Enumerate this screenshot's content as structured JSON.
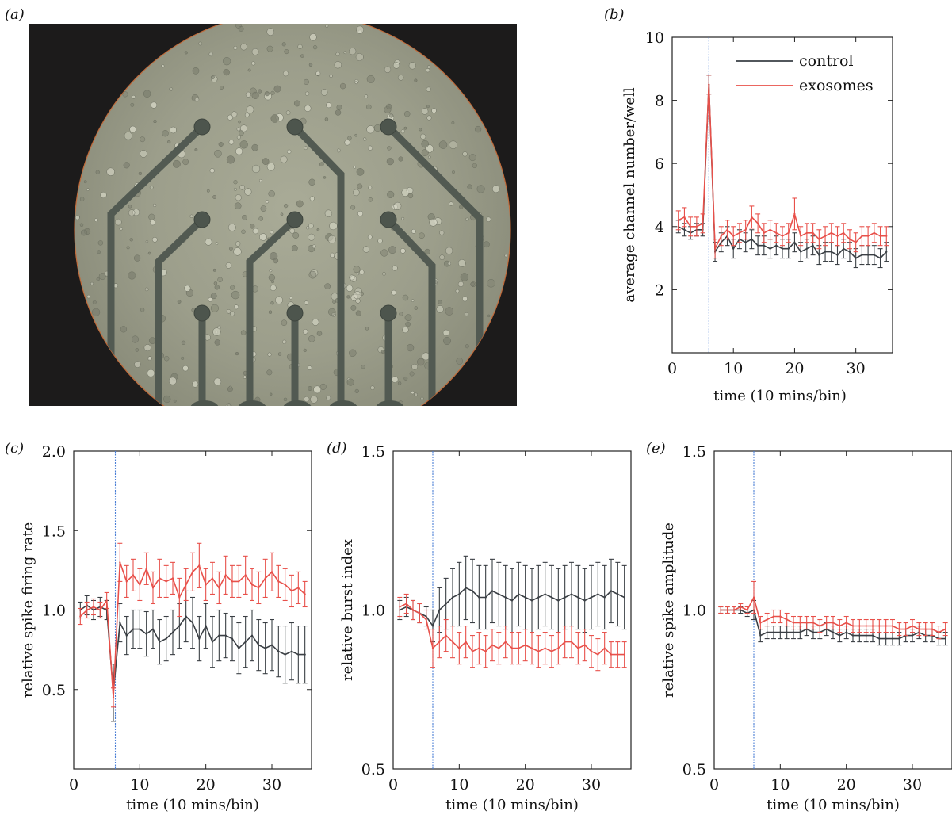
{
  "figure": {
    "panels": [
      {
        "id": "a",
        "label": "(a)"
      },
      {
        "id": "b",
        "label": "(b)"
      },
      {
        "id": "c",
        "label": "(c)"
      },
      {
        "id": "d",
        "label": "(d)"
      },
      {
        "id": "e",
        "label": "(e)"
      }
    ],
    "colors": {
      "control": "#3a3f44",
      "exosomes": "#e8504a",
      "marker": "#4a7fd6",
      "axis": "#222222"
    }
  },
  "chart_data": [
    {
      "panel": "b",
      "type": "line",
      "xlabel": "time (10 mins/bin)",
      "ylabel": "average channel number/well",
      "xlim": [
        0,
        36
      ],
      "ylim": [
        0,
        10
      ],
      "xticks": [
        0,
        10,
        20,
        30
      ],
      "yticks": [
        2,
        4,
        6,
        8,
        10
      ],
      "marker_x": 6,
      "legend": "top-right",
      "x": [
        1,
        2,
        3,
        4,
        5,
        6,
        7,
        8,
        9,
        10,
        11,
        12,
        13,
        14,
        15,
        16,
        17,
        18,
        19,
        20,
        21,
        22,
        23,
        24,
        25,
        26,
        27,
        28,
        29,
        30,
        31,
        32,
        33,
        34,
        35
      ],
      "series": [
        {
          "name": "control",
          "color": "#3a3f44",
          "values": [
            4.0,
            3.9,
            3.8,
            3.9,
            3.9,
            8.5,
            3.2,
            3.5,
            3.7,
            3.3,
            3.6,
            3.5,
            3.6,
            3.4,
            3.4,
            3.3,
            3.4,
            3.3,
            3.3,
            3.5,
            3.2,
            3.3,
            3.4,
            3.1,
            3.2,
            3.2,
            3.1,
            3.3,
            3.2,
            3.0,
            3.1,
            3.1,
            3.1,
            3.0,
            3.2
          ],
          "errors": [
            0.2,
            0.2,
            0.2,
            0.2,
            0.2,
            0.3,
            0.3,
            0.3,
            0.3,
            0.3,
            0.3,
            0.3,
            0.3,
            0.3,
            0.3,
            0.3,
            0.3,
            0.3,
            0.3,
            0.3,
            0.3,
            0.3,
            0.3,
            0.3,
            0.3,
            0.3,
            0.3,
            0.3,
            0.3,
            0.3,
            0.3,
            0.3,
            0.3,
            0.3,
            0.3
          ]
        },
        {
          "name": "exosomes",
          "color": "#e8504a",
          "values": [
            4.2,
            4.3,
            4.0,
            4.0,
            4.1,
            8.5,
            3.3,
            3.7,
            3.9,
            3.7,
            3.8,
            3.9,
            4.3,
            4.1,
            3.8,
            3.9,
            3.8,
            3.7,
            3.8,
            4.4,
            3.7,
            3.8,
            3.8,
            3.6,
            3.7,
            3.8,
            3.7,
            3.8,
            3.6,
            3.5,
            3.7,
            3.7,
            3.8,
            3.7,
            3.7
          ],
          "errors": [
            0.3,
            0.3,
            0.3,
            0.3,
            0.3,
            0.3,
            0.3,
            0.3,
            0.3,
            0.3,
            0.3,
            0.3,
            0.35,
            0.3,
            0.3,
            0.3,
            0.3,
            0.3,
            0.3,
            0.5,
            0.3,
            0.3,
            0.3,
            0.3,
            0.3,
            0.3,
            0.3,
            0.3,
            0.3,
            0.3,
            0.3,
            0.3,
            0.3,
            0.3,
            0.3
          ]
        }
      ]
    },
    {
      "panel": "c",
      "type": "line",
      "xlabel": "time (10 mins/bin)",
      "ylabel": "relative spike firing rate",
      "xlim": [
        0,
        36
      ],
      "ylim": [
        0,
        2.0
      ],
      "xticks": [
        0,
        10,
        20,
        30
      ],
      "yticks": [
        0.5,
        1.0,
        1.5,
        2.0
      ],
      "marker_x": 6.3,
      "x": [
        1,
        2,
        3,
        4,
        5,
        6,
        7,
        8,
        9,
        10,
        11,
        12,
        13,
        14,
        15,
        16,
        17,
        18,
        19,
        20,
        21,
        22,
        23,
        24,
        25,
        26,
        27,
        28,
        29,
        30,
        31,
        32,
        33,
        34,
        35
      ],
      "series": [
        {
          "name": "control",
          "color": "#3a3f44",
          "values": [
            1.0,
            1.03,
            1.0,
            1.02,
            1.0,
            0.48,
            0.92,
            0.84,
            0.88,
            0.88,
            0.85,
            0.88,
            0.8,
            0.82,
            0.86,
            0.9,
            0.96,
            0.92,
            0.82,
            0.9,
            0.8,
            0.84,
            0.84,
            0.82,
            0.76,
            0.8,
            0.84,
            0.78,
            0.76,
            0.78,
            0.74,
            0.72,
            0.74,
            0.72,
            0.72
          ],
          "errors": [
            0.05,
            0.06,
            0.06,
            0.06,
            0.06,
            0.18,
            0.12,
            0.12,
            0.12,
            0.12,
            0.14,
            0.12,
            0.14,
            0.14,
            0.14,
            0.14,
            0.16,
            0.16,
            0.14,
            0.14,
            0.16,
            0.16,
            0.14,
            0.14,
            0.16,
            0.16,
            0.16,
            0.16,
            0.16,
            0.16,
            0.16,
            0.18,
            0.18,
            0.18,
            0.18
          ]
        },
        {
          "name": "exosomes",
          "color": "#e8504a",
          "values": [
            0.96,
            1.0,
            1.02,
            1.0,
            1.06,
            0.45,
            1.3,
            1.18,
            1.22,
            1.16,
            1.26,
            1.14,
            1.2,
            1.18,
            1.2,
            1.08,
            1.16,
            1.24,
            1.28,
            1.16,
            1.2,
            1.14,
            1.22,
            1.18,
            1.18,
            1.22,
            1.16,
            1.14,
            1.2,
            1.24,
            1.18,
            1.16,
            1.12,
            1.14,
            1.1
          ],
          "errors": [
            0.05,
            0.05,
            0.05,
            0.05,
            0.05,
            0.06,
            0.12,
            0.1,
            0.1,
            0.1,
            0.1,
            0.1,
            0.12,
            0.1,
            0.1,
            0.12,
            0.1,
            0.12,
            0.14,
            0.1,
            0.1,
            0.1,
            0.12,
            0.1,
            0.1,
            0.12,
            0.1,
            0.1,
            0.12,
            0.12,
            0.1,
            0.1,
            0.1,
            0.1,
            0.08
          ]
        }
      ]
    },
    {
      "panel": "d",
      "type": "line",
      "xlabel": "time (10 mins/bin)",
      "ylabel": "relative burst index",
      "xlim": [
        0,
        36
      ],
      "ylim": [
        0.5,
        1.5
      ],
      "xticks": [
        0,
        10,
        20,
        30
      ],
      "yticks": [
        0.5,
        1.0,
        1.5
      ],
      "marker_x": 6,
      "x": [
        1,
        2,
        3,
        4,
        5,
        6,
        7,
        8,
        9,
        10,
        11,
        12,
        13,
        14,
        15,
        16,
        17,
        18,
        19,
        20,
        21,
        22,
        23,
        24,
        25,
        26,
        27,
        28,
        29,
        30,
        31,
        32,
        33,
        34,
        35
      ],
      "series": [
        {
          "name": "control",
          "color": "#3a3f44",
          "values": [
            1.0,
            1.01,
            1.0,
            0.99,
            0.98,
            0.95,
            1.0,
            1.02,
            1.04,
            1.05,
            1.07,
            1.06,
            1.04,
            1.04,
            1.06,
            1.05,
            1.04,
            1.03,
            1.05,
            1.04,
            1.03,
            1.04,
            1.05,
            1.04,
            1.03,
            1.04,
            1.05,
            1.04,
            1.03,
            1.04,
            1.05,
            1.04,
            1.06,
            1.05,
            1.04
          ],
          "errors": [
            0.03,
            0.03,
            0.03,
            0.03,
            0.03,
            0.05,
            0.07,
            0.08,
            0.09,
            0.1,
            0.1,
            0.1,
            0.1,
            0.1,
            0.1,
            0.1,
            0.1,
            0.1,
            0.1,
            0.1,
            0.1,
            0.1,
            0.1,
            0.1,
            0.1,
            0.1,
            0.1,
            0.1,
            0.1,
            0.1,
            0.1,
            0.1,
            0.1,
            0.1,
            0.1
          ]
        },
        {
          "name": "exosomes",
          "color": "#e8504a",
          "values": [
            1.01,
            1.02,
            1.0,
            0.99,
            0.97,
            0.88,
            0.9,
            0.92,
            0.9,
            0.88,
            0.9,
            0.87,
            0.88,
            0.87,
            0.89,
            0.88,
            0.9,
            0.88,
            0.88,
            0.89,
            0.88,
            0.87,
            0.88,
            0.87,
            0.88,
            0.9,
            0.9,
            0.88,
            0.89,
            0.87,
            0.86,
            0.88,
            0.86,
            0.86,
            0.86
          ],
          "errors": [
            0.03,
            0.03,
            0.03,
            0.03,
            0.03,
            0.06,
            0.05,
            0.05,
            0.05,
            0.05,
            0.05,
            0.05,
            0.05,
            0.05,
            0.05,
            0.05,
            0.05,
            0.05,
            0.05,
            0.05,
            0.05,
            0.05,
            0.05,
            0.05,
            0.05,
            0.05,
            0.05,
            0.05,
            0.05,
            0.05,
            0.05,
            0.05,
            0.04,
            0.04,
            0.04
          ]
        }
      ]
    },
    {
      "panel": "e",
      "type": "line",
      "xlabel": "time (10 mins/bin)",
      "ylabel": "relative spike amplitude",
      "xlim": [
        0,
        36
      ],
      "ylim": [
        0.5,
        1.5
      ],
      "xticks": [
        0,
        10,
        20,
        30
      ],
      "yticks": [
        0.5,
        1.0,
        1.5
      ],
      "marker_x": 6,
      "x": [
        1,
        2,
        3,
        4,
        5,
        6,
        7,
        8,
        9,
        10,
        11,
        12,
        13,
        14,
        15,
        16,
        17,
        18,
        19,
        20,
        21,
        22,
        23,
        24,
        25,
        26,
        27,
        28,
        29,
        30,
        31,
        32,
        33,
        34,
        35
      ],
      "series": [
        {
          "name": "control",
          "color": "#3a3f44",
          "values": [
            1.0,
            1.0,
            1.0,
            1.0,
            0.99,
            1.0,
            0.92,
            0.93,
            0.93,
            0.93,
            0.93,
            0.93,
            0.93,
            0.94,
            0.93,
            0.93,
            0.94,
            0.93,
            0.92,
            0.93,
            0.92,
            0.92,
            0.92,
            0.92,
            0.91,
            0.91,
            0.91,
            0.91,
            0.92,
            0.92,
            0.93,
            0.92,
            0.92,
            0.91,
            0.91
          ],
          "errors": [
            0.01,
            0.01,
            0.01,
            0.01,
            0.01,
            0.03,
            0.02,
            0.02,
            0.02,
            0.02,
            0.02,
            0.02,
            0.02,
            0.02,
            0.02,
            0.02,
            0.02,
            0.02,
            0.02,
            0.02,
            0.02,
            0.02,
            0.02,
            0.02,
            0.02,
            0.02,
            0.02,
            0.02,
            0.02,
            0.02,
            0.02,
            0.02,
            0.02,
            0.02,
            0.02
          ]
        },
        {
          "name": "exosomes",
          "color": "#e8504a",
          "values": [
            1.0,
            1.0,
            1.0,
            1.01,
            1.0,
            1.04,
            0.96,
            0.97,
            0.98,
            0.98,
            0.97,
            0.96,
            0.96,
            0.96,
            0.96,
            0.95,
            0.96,
            0.96,
            0.95,
            0.96,
            0.95,
            0.95,
            0.95,
            0.95,
            0.95,
            0.95,
            0.95,
            0.94,
            0.94,
            0.95,
            0.94,
            0.94,
            0.94,
            0.93,
            0.94
          ],
          "errors": [
            0.01,
            0.01,
            0.01,
            0.01,
            0.01,
            0.05,
            0.02,
            0.02,
            0.02,
            0.02,
            0.02,
            0.02,
            0.02,
            0.02,
            0.02,
            0.02,
            0.02,
            0.02,
            0.02,
            0.02,
            0.02,
            0.02,
            0.02,
            0.02,
            0.02,
            0.02,
            0.02,
            0.02,
            0.02,
            0.02,
            0.02,
            0.02,
            0.02,
            0.02,
            0.02
          ]
        }
      ]
    }
  ]
}
